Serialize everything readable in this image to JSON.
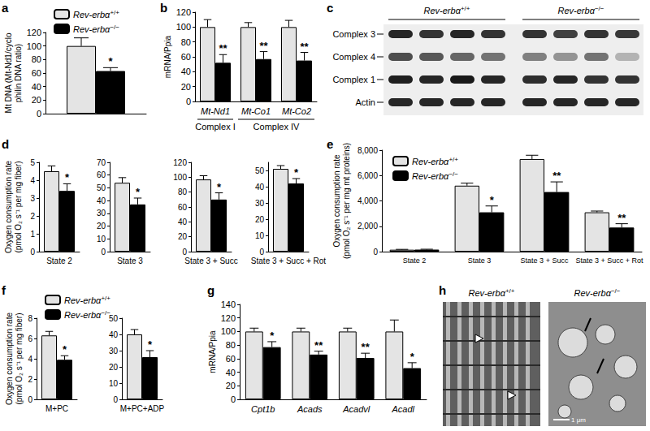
{
  "chart_data": [
    {
      "panel": "a",
      "type": "bar",
      "ylabel": "Mt DNA (Mt-Nd1/cyclo\nphilin DNA ratio)",
      "categories": [
        null
      ],
      "series": [
        {
          "name": "Rev-erbα+/+",
          "color": "#e4e4e4",
          "values": [
            100
          ],
          "errors": [
            12
          ]
        },
        {
          "name": "Rev-erbα−/−",
          "color": "#000000",
          "values": [
            63
          ],
          "errors": [
            5
          ],
          "significance": [
            "*"
          ]
        }
      ],
      "ylim": [
        0,
        120
      ],
      "yticks": [
        0,
        20,
        40,
        60,
        80,
        100,
        120
      ],
      "legend": "top"
    },
    {
      "panel": "b",
      "type": "bar",
      "ylabel": "mRNA/Ppia",
      "categories": [
        "Mt-Nd1",
        "Mt-Co1",
        "Mt-Co2"
      ],
      "groups": [
        {
          "label": "Complex I",
          "categories": [
            "Mt-Nd1"
          ]
        },
        {
          "label": "Complex IV",
          "categories": [
            "Mt-Co1",
            "Mt-Co2"
          ]
        }
      ],
      "series": [
        {
          "name": "Rev-erbα+/+",
          "color": "#e4e4e4",
          "values": [
            100,
            100,
            100
          ],
          "errors": [
            10,
            6,
            9
          ]
        },
        {
          "name": "Rev-erbα−/−",
          "color": "#000000",
          "values": [
            52,
            57,
            55
          ],
          "errors": [
            11,
            10,
            11
          ],
          "significance": [
            "**",
            "**",
            "**"
          ]
        }
      ],
      "ylim": [
        0,
        120
      ],
      "yticks": [
        0,
        20,
        40,
        60,
        80,
        100,
        120
      ]
    },
    {
      "panel": "d",
      "type": "bar",
      "ylabel": "Oxygen consumption rate\n(pmol O₂ s⁻¹ per mg fiber)",
      "categories": [
        "State 2"
      ],
      "series": [
        {
          "name": "Rev-erbα+/+",
          "color": "#e4e4e4",
          "values": [
            4.5
          ],
          "errors": [
            0.3
          ]
        },
        {
          "name": "Rev-erbα−/−",
          "color": "#000000",
          "values": [
            3.4
          ],
          "errors": [
            0.4
          ],
          "significance": [
            "*"
          ]
        }
      ],
      "ylim": [
        0,
        5
      ],
      "yticks": [
        0,
        1,
        2,
        3,
        4,
        5
      ]
    },
    {
      "type": "bar",
      "categories": [
        "State 3"
      ],
      "series": [
        {
          "name": "Rev-erbα+/+",
          "color": "#e4e4e4",
          "values": [
            54
          ],
          "errors": [
            4
          ]
        },
        {
          "name": "Rev-erbα−/−",
          "color": "#000000",
          "values": [
            37
          ],
          "errors": [
            5
          ],
          "significance": [
            "*"
          ]
        }
      ],
      "ylim": [
        0,
        70
      ],
      "yticks": [
        0,
        10,
        20,
        30,
        40,
        50,
        60,
        70
      ]
    },
    {
      "type": "bar",
      "categories": [
        "State 3 + Succ"
      ],
      "series": [
        {
          "name": "Rev-erbα+/+",
          "color": "#e4e4e4",
          "values": [
            97
          ],
          "errors": [
            5
          ]
        },
        {
          "name": "Rev-erbα−/−",
          "color": "#000000",
          "values": [
            70
          ],
          "errors": [
            9
          ],
          "significance": [
            "*"
          ]
        }
      ],
      "ylim": [
        0,
        120
      ],
      "yticks": [
        0,
        20,
        40,
        60,
        80,
        100,
        120
      ]
    },
    {
      "type": "bar",
      "categories": [
        "State 3 + Succ + Rot"
      ],
      "series": [
        {
          "name": "Rev-erbα+/+",
          "color": "#e4e4e4",
          "values": [
            51
          ],
          "errors": [
            2
          ]
        },
        {
          "name": "Rev-erbα−/−",
          "color": "#000000",
          "values": [
            42
          ],
          "errors": [
            3
          ],
          "significance": [
            "*"
          ]
        }
      ],
      "ylim": [
        0,
        55
      ],
      "yticks": [
        0,
        10,
        20,
        30,
        40,
        50
      ]
    },
    {
      "panel": "e",
      "type": "bar",
      "ylabel": "Oxygen consumption rate\n(pmol O₂ s⁻¹ per mg mt proteins)",
      "categories": [
        "State 2",
        "State 3",
        "State 3 + Succ",
        "State 3 + Succ + Rot"
      ],
      "series": [
        {
          "name": "Rev-erbα+/+",
          "color": "#e4e4e4",
          "values": [
            150,
            5200,
            7300,
            3100
          ],
          "errors": [
            30,
            200,
            300,
            100
          ]
        },
        {
          "name": "Rev-erbα−/−",
          "color": "#000000",
          "values": [
            160,
            3100,
            4700,
            1900
          ],
          "errors": [
            30,
            500,
            800,
            300
          ],
          "significance": [
            null,
            "*",
            "**",
            "**"
          ]
        }
      ],
      "ylim": [
        0,
        8000
      ],
      "yticks": [
        0,
        {
          "value": 2000,
          "label": "2,000"
        },
        {
          "value": 4000,
          "label": "4,000"
        },
        {
          "value": 6000,
          "label": "6,000"
        },
        {
          "value": 8000,
          "label": "8,000"
        }
      ],
      "legend": "upper left"
    },
    {
      "panel": "f",
      "type": "bar",
      "ylabel": "Oxygen consumption rate\n(pmol O₂ s⁻¹ per mg fiber)",
      "categories": [
        "M+PC"
      ],
      "series": [
        {
          "name": "Rev-erbα+/+",
          "color": "#e4e4e4",
          "values": [
            6.3
          ],
          "errors": [
            0.4
          ]
        },
        {
          "name": "Rev-erbα−/−",
          "color": "#000000",
          "values": [
            3.9
          ],
          "errors": [
            0.4
          ],
          "significance": [
            "*"
          ]
        }
      ],
      "ylim": [
        0,
        8
      ],
      "yticks": [
        0,
        2,
        4,
        6,
        8
      ],
      "legend": "top"
    },
    {
      "type": "bar",
      "categories": [
        "M+PC+ADP"
      ],
      "series": [
        {
          "name": "Rev-erbα+/+",
          "color": "#e4e4e4",
          "values": [
            40
          ],
          "errors": [
            3
          ]
        },
        {
          "name": "Rev-erbα−/−",
          "color": "#000000",
          "values": [
            26
          ],
          "errors": [
            4
          ],
          "significance": [
            "*"
          ]
        }
      ],
      "ylim": [
        0,
        50
      ],
      "yticks": [
        0,
        10,
        20,
        30,
        40,
        50
      ]
    },
    {
      "panel": "g",
      "type": "bar",
      "ylabel": "mRNA/Ppia",
      "categories": [
        "Cpt1b",
        "Acads",
        "Acadvl",
        "Acadl"
      ],
      "series": [
        {
          "name": "Rev-erbα+/+",
          "color": "#e4e4e4",
          "values": [
            100,
            100,
            100,
            100
          ],
          "errors": [
            5,
            5,
            5,
            17
          ]
        },
        {
          "name": "Rev-erbα−/−",
          "color": "#000000",
          "values": [
            77,
            66,
            61,
            46
          ],
          "errors": [
            8,
            5,
            7,
            8
          ],
          "significance": [
            "*",
            "**",
            "**",
            "*"
          ]
        }
      ],
      "ylim": [
        0,
        140
      ],
      "yticks": [
        0,
        20,
        40,
        60,
        80,
        100,
        120,
        140
      ]
    }
  ],
  "blot": {
    "panel": "c",
    "groups": [
      "Rev-erbα+/+",
      "Rev-erbα−/−"
    ],
    "rows": [
      "Complex 3",
      "Complex 4",
      "Complex 1",
      "Actin"
    ],
    "lanes_per_group": 4
  },
  "micrograph": {
    "panel": "h",
    "images": [
      "Rev-erbα+/+",
      "Rev-erbα−/−"
    ],
    "scale_bar": "1 μm"
  }
}
